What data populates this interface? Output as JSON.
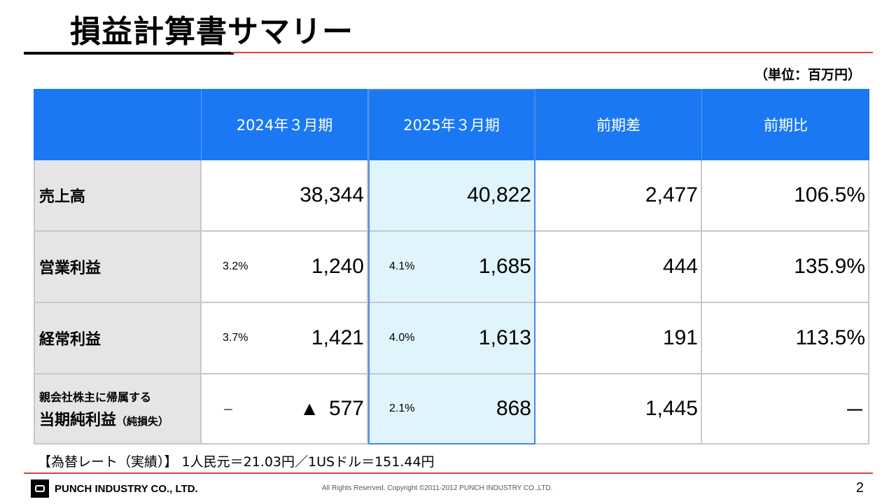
{
  "title": "損益計算書サマリー",
  "unit": "（単位：百万円）",
  "table": {
    "headers": [
      "",
      "2024年３月期",
      "2025年３月期",
      "前期差",
      "前期比"
    ],
    "rows": [
      {
        "label": "売上高",
        "fy2024": {
          "pct": "",
          "value": "38,344"
        },
        "fy2025": {
          "pct": "",
          "value": "40,822"
        },
        "diff": "2,477",
        "ratio": "106.5%"
      },
      {
        "label": "営業利益",
        "fy2024": {
          "pct": "3.2%",
          "value": "1,240"
        },
        "fy2025": {
          "pct": "4.1%",
          "value": "1,685"
        },
        "diff": "444",
        "ratio": "135.9%"
      },
      {
        "label": "経常利益",
        "fy2024": {
          "pct": "3.7%",
          "value": "1,421"
        },
        "fy2025": {
          "pct": "4.0%",
          "value": "1,613"
        },
        "diff": "191",
        "ratio": "113.5%"
      },
      {
        "label_line1": "親会社株主に帰属する",
        "label_line2": "当期純利益",
        "label_suffix": "（純損失）",
        "fy2024": {
          "pct": "－",
          "value": "577",
          "marker": "▲"
        },
        "fy2025": {
          "pct": "2.1%",
          "value": "868"
        },
        "diff": "1,445",
        "ratio": "－"
      }
    ]
  },
  "fx_note": "【為替レート（実績）】 1人民元＝21.03円／1USドル＝151.44円",
  "footer": {
    "company": "PUNCH INDUSTRY CO., LTD.",
    "copyright": "All Rights Reserved. Copyright ©2011-2012  PUNCH  INDUSTRY  CO.,LTD.",
    "page": "2"
  },
  "colors": {
    "header_blue": "#1a78f2",
    "highlight_bg": "#dff4fc",
    "label_bg": "#e5e5e5",
    "rule_red": "#e04040"
  }
}
